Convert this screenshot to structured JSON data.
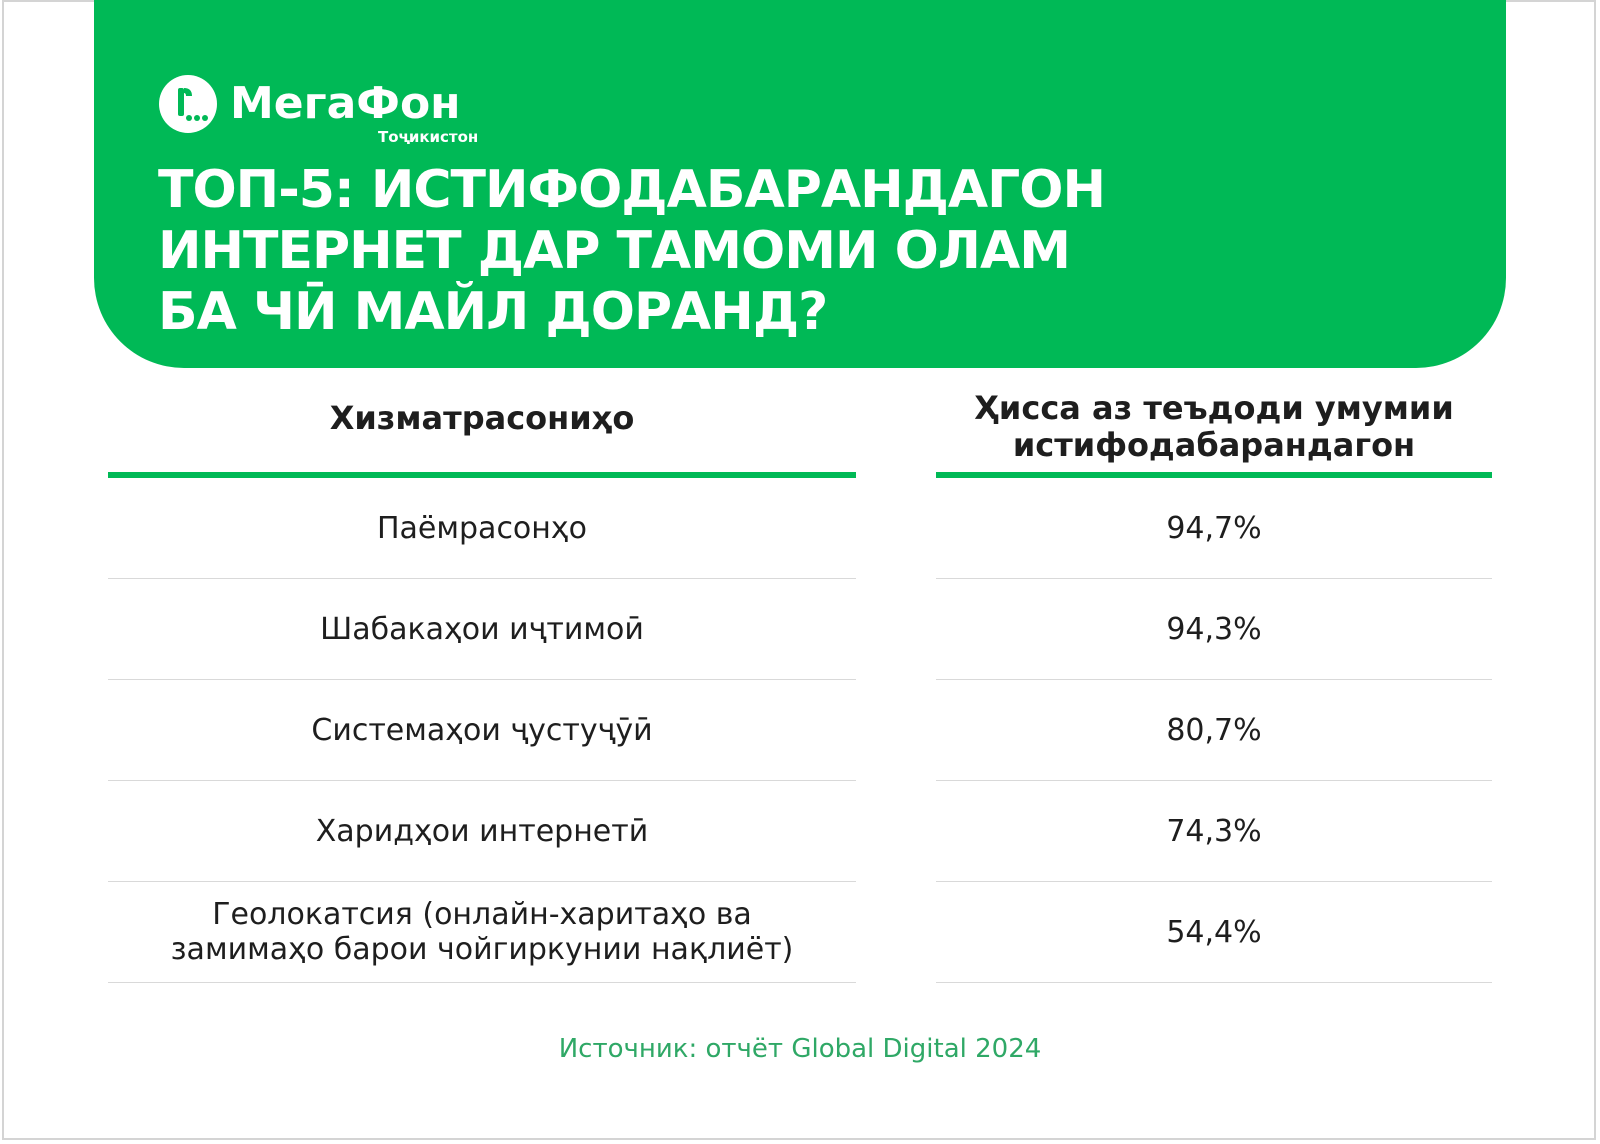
{
  "brand": {
    "name": "МегаФон",
    "subtitle": "Тоҷикистон"
  },
  "title_lines": [
    "ТОП-5: ИСТИФОДАБАРАНДАГОН",
    "ИНТЕРНЕТ ДАР ТАМОМИ ОЛАМ",
    "БА ЧӢ МАЙЛ ДОРАНД?"
  ],
  "table": {
    "columns": [
      "Хизматрасониҳо",
      "Ҳисса аз теъдоди умумии истифодабарандагон"
    ],
    "rows": [
      {
        "service": "Паёмрасонҳо",
        "share": "94,7%"
      },
      {
        "service": "Шабакаҳои иҷтимоӣ",
        "share": "94,3%"
      },
      {
        "service": "Системаҳои ҷустуҷӯӣ",
        "share": "80,7%"
      },
      {
        "service": "Харидҳои интернетӣ",
        "share": "74,3%"
      },
      {
        "service": "Геолокатсия (онлайн-харитаҳо ва замимаҳо барои чойгиркунии нақлиёт)",
        "share": "54,4%"
      }
    ]
  },
  "source": "Источник: отчёт Global Digital 2024",
  "colors": {
    "brand_green": "#00b956",
    "text_dark": "#1e1e1e"
  }
}
